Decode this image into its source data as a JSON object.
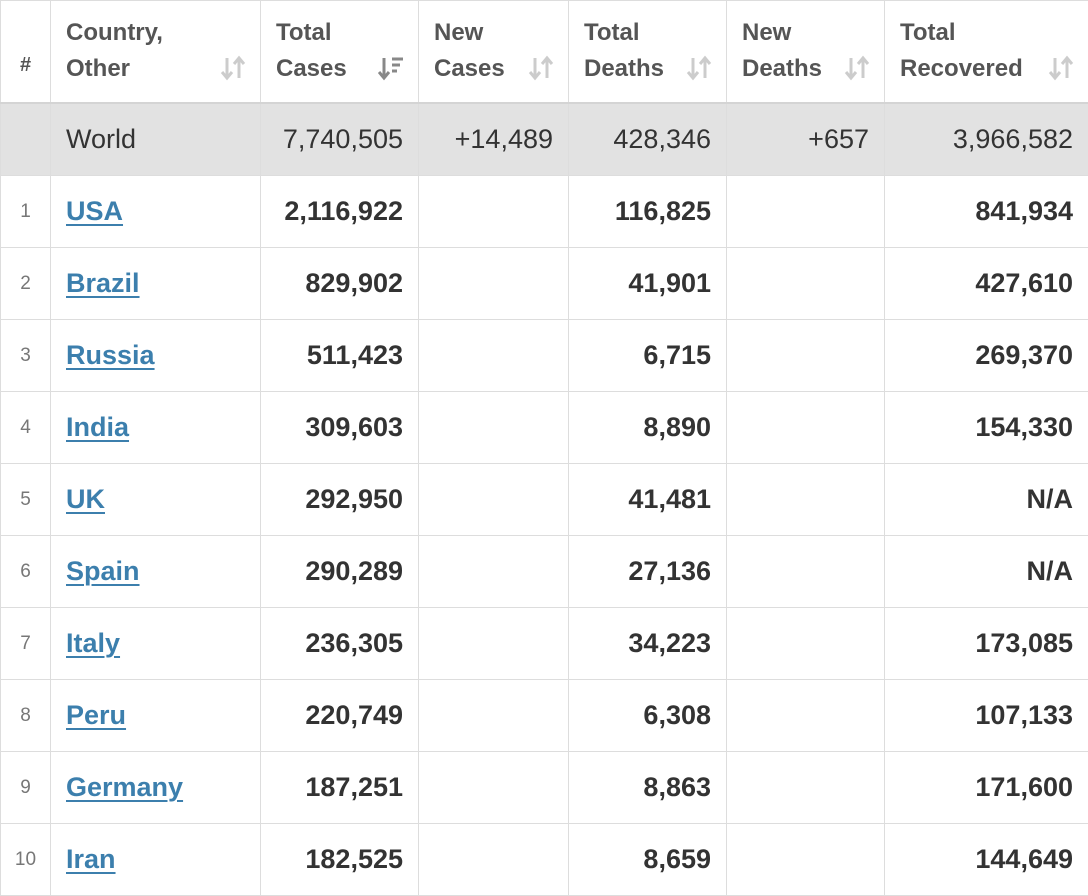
{
  "header": {
    "rank": "#",
    "country": "Country,\nOther",
    "total_cases": "Total\nCases",
    "new_cases": "New\nCases",
    "total_deaths": "Total\nDeaths",
    "new_deaths": "New\nDeaths",
    "total_recovered": "Total\nRecovered"
  },
  "world": {
    "name": "World",
    "total_cases": "7,740,505",
    "new_cases": "+14,489",
    "total_deaths": "428,346",
    "new_deaths": "+657",
    "total_recovered": "3,966,582"
  },
  "rows": [
    {
      "rank": "1",
      "country": "USA",
      "total_cases": "2,116,922",
      "new_cases": "",
      "total_deaths": "116,825",
      "new_deaths": "",
      "total_recovered": "841,934"
    },
    {
      "rank": "2",
      "country": "Brazil",
      "total_cases": "829,902",
      "new_cases": "",
      "total_deaths": "41,901",
      "new_deaths": "",
      "total_recovered": "427,610"
    },
    {
      "rank": "3",
      "country": "Russia",
      "total_cases": "511,423",
      "new_cases": "",
      "total_deaths": "6,715",
      "new_deaths": "",
      "total_recovered": "269,370"
    },
    {
      "rank": "4",
      "country": "India",
      "total_cases": "309,603",
      "new_cases": "",
      "total_deaths": "8,890",
      "new_deaths": "",
      "total_recovered": "154,330"
    },
    {
      "rank": "5",
      "country": "UK",
      "total_cases": "292,950",
      "new_cases": "",
      "total_deaths": "41,481",
      "new_deaths": "",
      "total_recovered": "N/A"
    },
    {
      "rank": "6",
      "country": "Spain",
      "total_cases": "290,289",
      "new_cases": "",
      "total_deaths": "27,136",
      "new_deaths": "",
      "total_recovered": "N/A"
    },
    {
      "rank": "7",
      "country": "Italy",
      "total_cases": "236,305",
      "new_cases": "",
      "total_deaths": "34,223",
      "new_deaths": "",
      "total_recovered": "173,085"
    },
    {
      "rank": "8",
      "country": "Peru",
      "total_cases": "220,749",
      "new_cases": "",
      "total_deaths": "6,308",
      "new_deaths": "",
      "total_recovered": "107,133"
    },
    {
      "rank": "9",
      "country": "Germany",
      "total_cases": "187,251",
      "new_cases": "",
      "total_deaths": "8,863",
      "new_deaths": "",
      "total_recovered": "171,600"
    },
    {
      "rank": "10",
      "country": "Iran",
      "total_cases": "182,525",
      "new_cases": "",
      "total_deaths": "8,659",
      "new_deaths": "",
      "total_recovered": "144,649"
    }
  ],
  "icons": {
    "sort_inactive": "sort-arrows-icon",
    "sort_active": "sort-descending-icon"
  },
  "colors": {
    "link": "#3c7fad",
    "world_row_bg": "#e2e2e2",
    "sort_icon_inactive": "#cccccc",
    "sort_icon_active": "#888888"
  }
}
